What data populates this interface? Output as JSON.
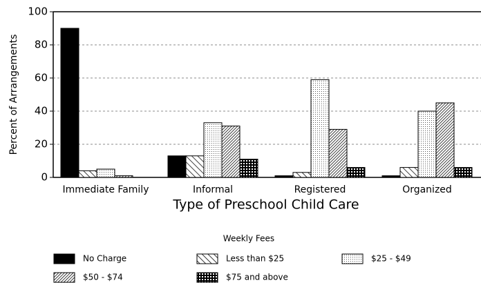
{
  "chart_data": {
    "type": "bar",
    "categories": [
      "Immediate Family",
      "Informal",
      "Registered",
      "Organized"
    ],
    "xlabel": "Type of Preschool Child Care",
    "ylabel": "Percent of Arrangements",
    "ylim": [
      0,
      100
    ],
    "yticks": [
      0,
      20,
      40,
      60,
      80,
      100
    ],
    "grid": true,
    "legend_title": "Weekly Fees",
    "series": [
      {
        "name": "No Charge",
        "color": "#000000",
        "pattern": "solid",
        "values": [
          90,
          13,
          1,
          1
        ]
      },
      {
        "name": "Less than $25",
        "color": "#000000",
        "pattern": "diagonal",
        "values": [
          4,
          13,
          3,
          6
        ]
      },
      {
        "name": "$25 - $49",
        "color": "#000000",
        "pattern": "dots",
        "values": [
          5,
          33,
          59,
          40
        ]
      },
      {
        "name": "$50 - $74",
        "color": "#000000",
        "pattern": "dense-diagonal",
        "values": [
          1,
          31,
          29,
          45
        ]
      },
      {
        "name": "$75 and above",
        "color": "#000000",
        "pattern": "grid",
        "values": [
          0,
          11,
          6,
          6
        ]
      }
    ]
  }
}
